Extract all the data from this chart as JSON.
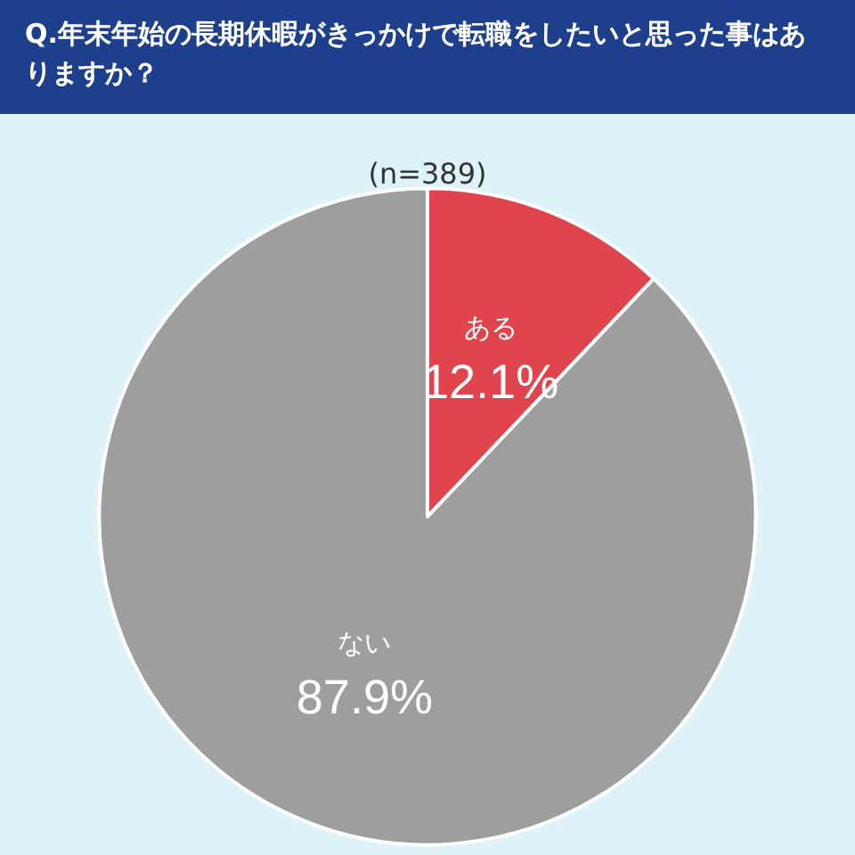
{
  "chart_data": {
    "type": "pie",
    "title": "Q.年末年始の長期休暇がきっかけで転職をしたいと思った事はありますか？",
    "subtitle": "(n=389)",
    "categories": [
      "ある",
      "ない"
    ],
    "values": [
      12.1,
      87.9
    ],
    "colors": [
      "#e0454e",
      "#9e9e9e"
    ],
    "value_labels": [
      "12.1%",
      "87.9%"
    ],
    "legend": false
  }
}
